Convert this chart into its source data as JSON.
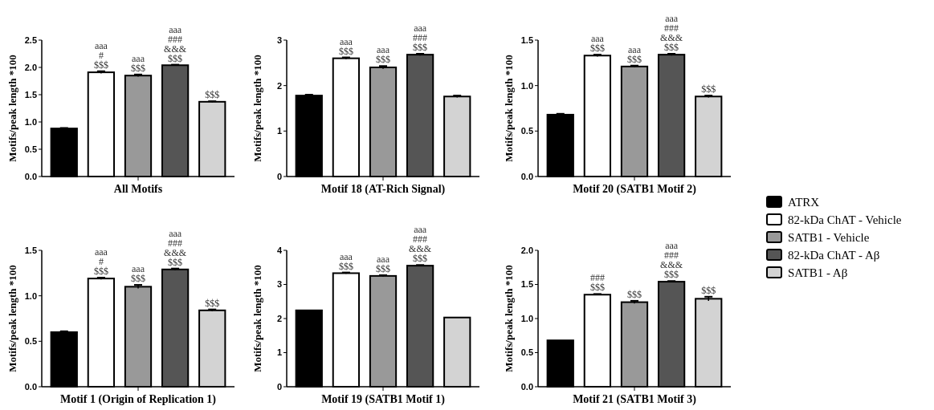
{
  "chart_data": [
    {
      "type": "bar",
      "xlabel": "All Motifs",
      "ylabel": "Motifs/peak length *100",
      "categories": [
        null
      ],
      "ylim": [
        0,
        2.5
      ],
      "yticks": [
        {
          "value": 0,
          "label": "0.0"
        },
        {
          "value": 0.5,
          "label": "0.5"
        },
        {
          "value": 1,
          "label": "1.0"
        },
        {
          "value": 1.5,
          "label": "1.5"
        },
        {
          "value": 2,
          "label": "2.0"
        },
        {
          "value": 2.5,
          "label": "2.5"
        }
      ],
      "grid": false,
      "series": [
        {
          "color": "#000000",
          "values": [
            0.88
          ],
          "errors": [
            0.01
          ]
        },
        {
          "color": "#ffffff",
          "values": [
            1.91
          ],
          "errors": [
            0.02
          ],
          "value_labels": [
            "aaa\n#\n$$$"
          ]
        },
        {
          "color": "#999999",
          "values": [
            1.85
          ],
          "errors": [
            0.02
          ],
          "value_labels": [
            "aaa\n$$$"
          ]
        },
        {
          "color": "#555555",
          "values": [
            2.04
          ],
          "errors": [
            0.01
          ],
          "value_labels": [
            "aaa\n###\n&&&\n$$$"
          ]
        },
        {
          "color": "#d3d3d3",
          "values": [
            1.37
          ],
          "errors": [
            0.01
          ],
          "value_labels": [
            "$$$"
          ]
        }
      ]
    },
    {
      "type": "bar",
      "xlabel": "Motif 18 (AT-Rich Signal)",
      "ylabel": "Motifs/peak length *100",
      "categories": [
        null
      ],
      "ylim": [
        0,
        3
      ],
      "yticks": [
        0,
        1,
        2,
        3
      ],
      "grid": false,
      "series": [
        {
          "color": "#000000",
          "values": [
            1.78
          ],
          "errors": [
            0.02
          ]
        },
        {
          "color": "#ffffff",
          "values": [
            2.6
          ],
          "errors": [
            0.02
          ],
          "value_labels": [
            "aaa\n$$$"
          ]
        },
        {
          "color": "#999999",
          "values": [
            2.4
          ],
          "errors": [
            0.03
          ],
          "value_labels": [
            "aaa\n$$$"
          ]
        },
        {
          "color": "#555555",
          "values": [
            2.68
          ],
          "errors": [
            0.02
          ],
          "value_labels": [
            "aaa\n###\n$$$"
          ]
        },
        {
          "color": "#d3d3d3",
          "values": [
            1.76
          ],
          "errors": [
            0.02
          ]
        }
      ]
    },
    {
      "type": "bar",
      "xlabel": "Motif 20 (SATB1 Motif 2)",
      "ylabel": "Motifs/peak length *100",
      "categories": [
        null
      ],
      "ylim": [
        0,
        1.5
      ],
      "yticks": [
        {
          "value": 0,
          "label": "0.0"
        },
        {
          "value": 0.5,
          "label": "0.5"
        },
        {
          "value": 1,
          "label": "1.0"
        },
        {
          "value": 1.5,
          "label": "1.5"
        }
      ],
      "grid": false,
      "legend": "right",
      "series": [
        {
          "name": "ATRX",
          "color": "#000000",
          "values": [
            0.68
          ],
          "errors": [
            0.01
          ]
        },
        {
          "name": "82-kDa ChAT - Vehicle",
          "color": "#ffffff",
          "values": [
            1.33
          ],
          "errors": [
            0.01
          ],
          "value_labels": [
            "aaa\n$$$"
          ]
        },
        {
          "name": "SATB1 - Vehicle",
          "color": "#999999",
          "values": [
            1.21
          ],
          "errors": [
            0.01
          ],
          "value_labels": [
            "aaa\n$$$"
          ]
        },
        {
          "name": "82-kDa ChAT - Aβ",
          "color": "#555555",
          "values": [
            1.34
          ],
          "errors": [
            0.01
          ],
          "value_labels": [
            "aaa\n###\n&&&\n$$$"
          ]
        },
        {
          "name": "SATB1 - Aβ",
          "color": "#d3d3d3",
          "values": [
            0.88
          ],
          "errors": [
            0.01
          ],
          "value_labels": [
            "$$$"
          ]
        }
      ]
    },
    {
      "type": "bar",
      "xlabel": "Motif 1 (Origin of Replication 1)",
      "ylabel": "Motifs/peak length *100",
      "categories": [
        null
      ],
      "ylim": [
        0,
        1.5
      ],
      "yticks": [
        {
          "value": 0,
          "label": "0.0"
        },
        {
          "value": 0.5,
          "label": "0.5"
        },
        {
          "value": 1,
          "label": "1.0"
        },
        {
          "value": 1.5,
          "label": "1.5"
        }
      ],
      "grid": false,
      "series": [
        {
          "color": "#000000",
          "values": [
            0.6
          ],
          "errors": [
            0.01
          ]
        },
        {
          "color": "#ffffff",
          "values": [
            1.19
          ],
          "errors": [
            0.01
          ],
          "value_labels": [
            "aaa\n#\n$$$"
          ]
        },
        {
          "color": "#999999",
          "values": [
            1.1
          ],
          "errors": [
            0.02
          ],
          "value_labels": [
            "aaa\n$$$"
          ]
        },
        {
          "color": "#555555",
          "values": [
            1.29
          ],
          "errors": [
            0.01
          ],
          "value_labels": [
            "aaa\n###\n&&&\n$$$"
          ]
        },
        {
          "color": "#d3d3d3",
          "values": [
            0.84
          ],
          "errors": [
            0.01
          ],
          "value_labels": [
            "$$$"
          ]
        }
      ]
    },
    {
      "type": "bar",
      "xlabel": "Motif 19 (SATB1 Motif 1)",
      "ylabel": "Motifs/peak length *100",
      "categories": [
        null
      ],
      "ylim": [
        0,
        4
      ],
      "yticks": [
        0,
        1,
        2,
        3,
        4
      ],
      "grid": false,
      "series": [
        {
          "color": "#000000",
          "values": [
            2.24
          ]
        },
        {
          "color": "#ffffff",
          "values": [
            3.33
          ],
          "errors": [
            0.02
          ],
          "value_labels": [
            "aaa\n$$$"
          ]
        },
        {
          "color": "#999999",
          "values": [
            3.25
          ],
          "errors": [
            0.02
          ],
          "value_labels": [
            "aaa\n$$$"
          ]
        },
        {
          "color": "#555555",
          "values": [
            3.55
          ],
          "errors": [
            0.02
          ],
          "value_labels": [
            "aaa\n###\n&&&\n$$$"
          ]
        },
        {
          "color": "#d3d3d3",
          "values": [
            2.03
          ]
        }
      ]
    },
    {
      "type": "bar",
      "xlabel": "Motif 21 (SATB1 Motif 3)",
      "ylabel": "Motifs/peak length *100",
      "categories": [
        null
      ],
      "ylim": [
        0,
        2
      ],
      "yticks": [
        {
          "value": 0,
          "label": "0.0"
        },
        {
          "value": 0.5,
          "label": "0.5"
        },
        {
          "value": 1,
          "label": "1.0"
        },
        {
          "value": 1.5,
          "label": "1.5"
        },
        {
          "value": 2,
          "label": "2.0"
        }
      ],
      "grid": false,
      "series": [
        {
          "color": "#000000",
          "values": [
            0.68
          ]
        },
        {
          "color": "#ffffff",
          "values": [
            1.35
          ],
          "errors": [
            0.01
          ],
          "value_labels": [
            "###\n$$$"
          ]
        },
        {
          "color": "#999999",
          "values": [
            1.24
          ],
          "errors": [
            0.02
          ],
          "value_labels": [
            "$$$"
          ]
        },
        {
          "color": "#555555",
          "values": [
            1.54
          ],
          "errors": [
            0.01
          ],
          "value_labels": [
            "aaa\n###\n&&&\n$$$"
          ]
        },
        {
          "color": "#d3d3d3",
          "values": [
            1.29
          ],
          "errors": [
            0.03
          ],
          "value_labels": [
            "$$$"
          ]
        }
      ]
    }
  ]
}
